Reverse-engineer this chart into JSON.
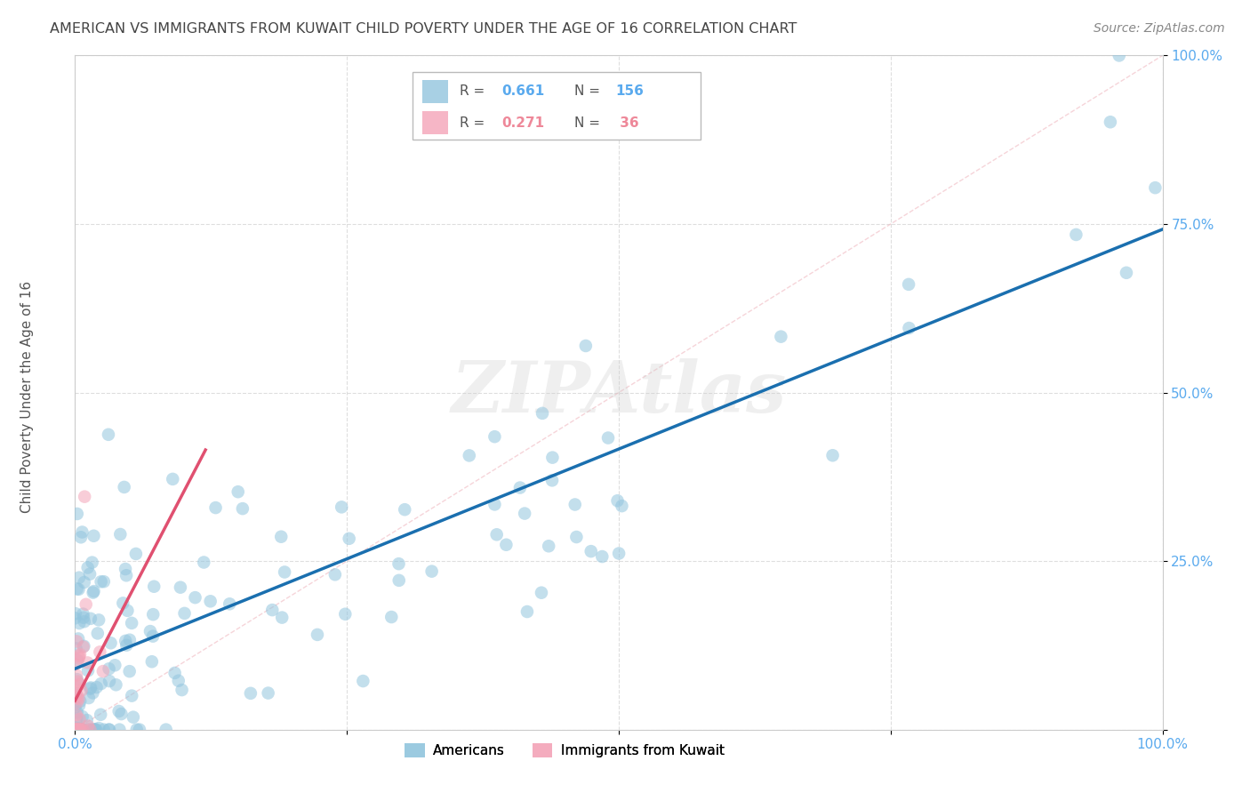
{
  "title": "AMERICAN VS IMMIGRANTS FROM KUWAIT CHILD POVERTY UNDER THE AGE OF 16 CORRELATION CHART",
  "source": "Source: ZipAtlas.com",
  "ylabel": "Child Poverty Under the Age of 16",
  "legend_labels": [
    "Americans",
    "Immigrants from Kuwait"
  ],
  "legend_r_americans": "R = 0.661",
  "legend_n_americans": "N = 156",
  "legend_r_kuwait": "R = 0.271",
  "legend_n_kuwait": "N =  36",
  "color_americans": "#92c5de",
  "color_kuwait": "#f4a4b8",
  "color_line_americans": "#1a6faf",
  "color_line_kuwait": "#e05070",
  "color_diag": "#f4b8c0",
  "background": "#ffffff",
  "grid_color": "#d0d0d0",
  "watermark": "ZIPAtlas",
  "title_color": "#444444",
  "source_color": "#888888",
  "tick_label_color": "#5aaaee",
  "ylabel_color": "#555555",
  "line_am_intercept": 0.07,
  "line_am_slope": 0.68,
  "line_kw_intercept": 0.02,
  "line_kw_slope": 3.5
}
